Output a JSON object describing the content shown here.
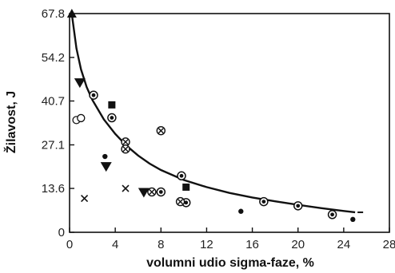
{
  "chart_data": {
    "type": "scatter",
    "title": "",
    "xlabel": "volumni udio sigma-faze, %",
    "ylabel": "Žilavost, J",
    "xlim": [
      0,
      28
    ],
    "ylim": [
      0,
      67.8
    ],
    "xticks": [
      0,
      4,
      8,
      12,
      16,
      20,
      24,
      28
    ],
    "yticks": [
      0,
      13.6,
      27.1,
      40.7,
      54.2,
      67.8
    ],
    "grid": false,
    "legend": "none",
    "color": "#111111",
    "series": [
      {
        "marker": "triangle-up-filled",
        "points": [
          [
            0.2,
            67.8
          ]
        ]
      },
      {
        "marker": "triangle-down-filled",
        "points": [
          [
            0.9,
            46.5
          ],
          [
            3.2,
            20.5
          ],
          [
            6.5,
            12.5
          ]
        ]
      },
      {
        "marker": "square-filled",
        "points": [
          [
            3.7,
            39.5
          ],
          [
            10.2,
            14.0
          ]
        ]
      },
      {
        "marker": "circle-dot",
        "points": [
          [
            2.1,
            42.5
          ],
          [
            3.7,
            35.5
          ],
          [
            9.8,
            17.5
          ],
          [
            8.0,
            12.5
          ],
          [
            17.0,
            9.5
          ],
          [
            20.0,
            8.2
          ],
          [
            23.0,
            5.5
          ],
          [
            10.2,
            9.2
          ]
        ]
      },
      {
        "marker": "circle-cross",
        "points": [
          [
            8.0,
            31.5
          ],
          [
            4.9,
            28.0
          ],
          [
            4.9,
            25.8
          ],
          [
            7.2,
            12.5
          ],
          [
            9.7,
            9.5
          ]
        ]
      },
      {
        "marker": "circle-open",
        "points": [
          [
            0.6,
            34.8
          ],
          [
            1.0,
            35.4
          ]
        ]
      },
      {
        "marker": "dot-filled",
        "points": [
          [
            3.1,
            23.5
          ],
          [
            15.0,
            6.5
          ],
          [
            24.8,
            4.0
          ]
        ]
      },
      {
        "marker": "x",
        "points": [
          [
            1.3,
            10.5
          ],
          [
            4.9,
            13.6
          ]
        ]
      }
    ],
    "fit_curve": [
      [
        0.2,
        67.5
      ],
      [
        0.6,
        57.0
      ],
      [
        1.0,
        50.5
      ],
      [
        1.5,
        45.0
      ],
      [
        2.0,
        41.0
      ],
      [
        3.0,
        35.0
      ],
      [
        4.0,
        30.5
      ],
      [
        5.0,
        26.8
      ],
      [
        6.0,
        23.8
      ],
      [
        7.0,
        21.3
      ],
      [
        8.0,
        19.3
      ],
      [
        10.0,
        16.2
      ],
      [
        12.0,
        14.0
      ],
      [
        14.0,
        12.2
      ],
      [
        16.0,
        10.8
      ],
      [
        18.0,
        9.6
      ],
      [
        20.0,
        8.5
      ],
      [
        22.0,
        7.5
      ],
      [
        24.0,
        6.6
      ],
      [
        25.0,
        6.2
      ]
    ]
  }
}
